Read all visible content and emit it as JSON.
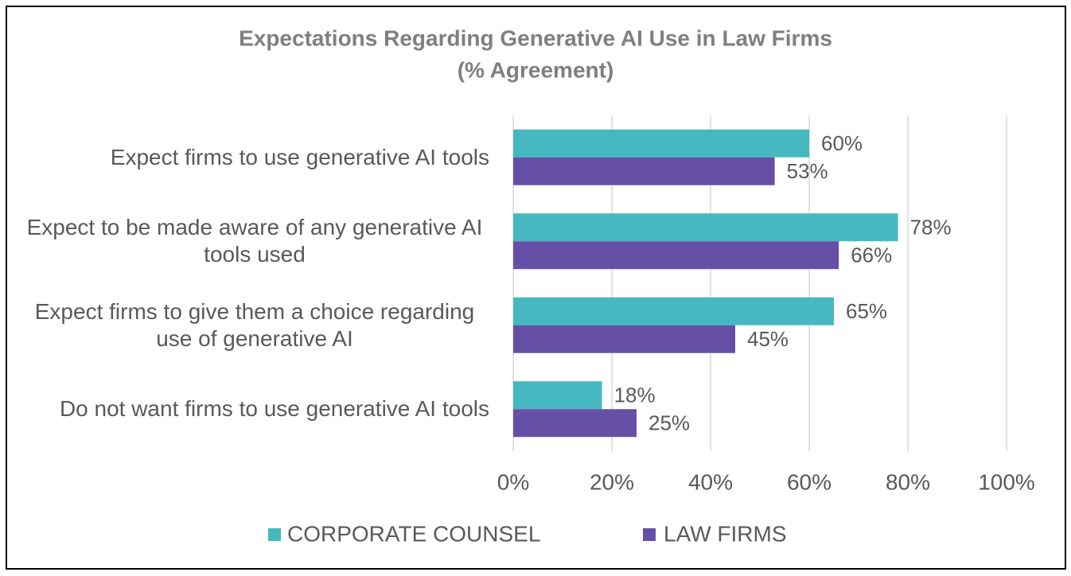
{
  "chart_data": {
    "type": "bar",
    "orientation": "horizontal",
    "title": "Expectations Regarding Generative AI Use in Law Firms",
    "subtitle": "(% Agreement)",
    "categories": [
      "Expect firms to use generative AI tools",
      "Expect to be made aware of any generative AI tools used",
      "Expect firms to give them a choice regarding use of generative AI",
      "Do not want firms to use generative AI tools"
    ],
    "series": [
      {
        "name": "CORPORATE COUNSEL",
        "color": "#45b9bf",
        "values": [
          60,
          78,
          65,
          18
        ],
        "value_labels": [
          "60%",
          "78%",
          "65%",
          "18%"
        ]
      },
      {
        "name": "LAW FIRMS",
        "color": "#6650a6",
        "values": [
          53,
          66,
          45,
          25
        ],
        "value_labels": [
          "53%",
          "66%",
          "45%",
          "25%"
        ]
      }
    ],
    "xlim": [
      0,
      100
    ],
    "xticks": [
      {
        "value": 0,
        "label": "0%"
      },
      {
        "value": 20,
        "label": "20%"
      },
      {
        "value": 40,
        "label": "40%"
      },
      {
        "value": 60,
        "label": "60%"
      },
      {
        "value": 80,
        "label": "80%"
      },
      {
        "value": 100,
        "label": "100%"
      }
    ],
    "grid": true,
    "legend": "bottom"
  }
}
